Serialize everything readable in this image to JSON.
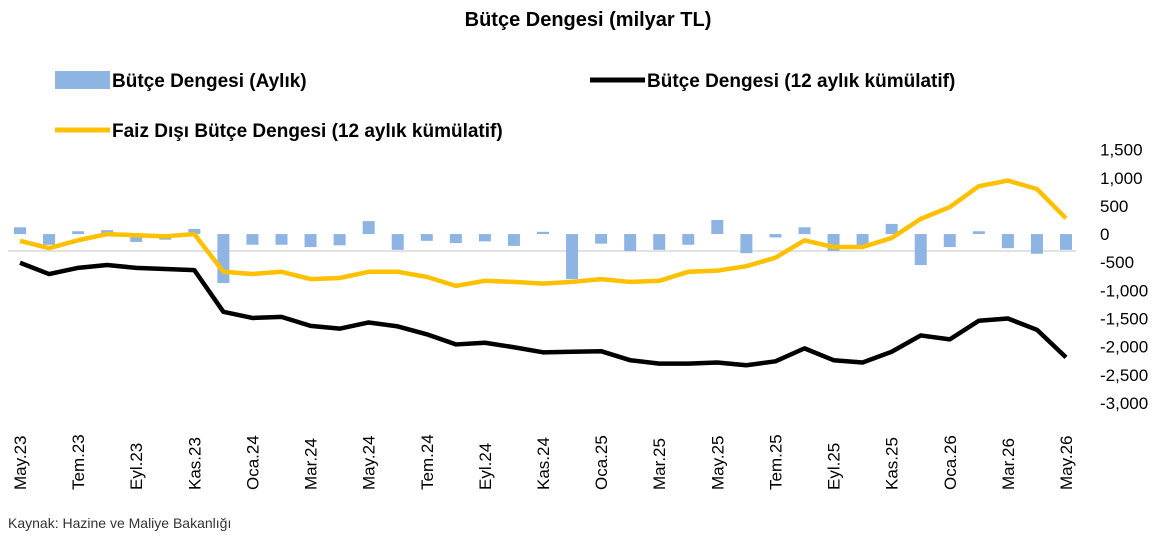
{
  "chart_data": {
    "type": "bar-line",
    "title": "Bütçe Dengesi (milyar TL)",
    "source": "Kaynak: Hazine ve Maliye Bakanlığı",
    "categories": [
      "May.23",
      null,
      "Tem.23",
      null,
      "Eyl.23",
      null,
      "Kas.23",
      null,
      "Oca.24",
      null,
      "Mar.24",
      null,
      "May.24",
      null,
      "Tem.24",
      null,
      "Eyl.24",
      null,
      "Kas.24",
      null,
      "Oca.25",
      null,
      "Mar.25",
      null,
      "May.25",
      null,
      "Tem.25",
      null,
      "Eyl.25",
      null,
      "Kas.25",
      null,
      "Oca.26",
      null,
      "Mar.26",
      null,
      "May.26"
    ],
    "series": [
      {
        "name": "Bütçe Dengesi (Aylık)",
        "type": "bar",
        "color": "#8eb4e3",
        "values": [
          120,
          -190,
          50,
          70,
          -140,
          -100,
          90,
          -870,
          -190,
          -190,
          -230,
          -200,
          230,
          -280,
          -120,
          -160,
          -130,
          -210,
          40,
          -800,
          -170,
          -300,
          -280,
          -190,
          250,
          -340,
          -60,
          120,
          -300,
          -210,
          180,
          -550,
          -230,
          50,
          -250,
          -350,
          -280
        ]
      },
      {
        "name": "Bütçe Dengesi (12 aylık kümülatif)",
        "type": "line",
        "color": "#000000",
        "values": [
          -510,
          -710,
          -600,
          -550,
          -600,
          -620,
          -640,
          -1380,
          -1490,
          -1470,
          -1630,
          -1680,
          -1570,
          -1640,
          -1780,
          -1960,
          -1930,
          -2010,
          -2100,
          -2090,
          -2080,
          -2240,
          -2300,
          -2300,
          -2280,
          -2330,
          -2260,
          -2030,
          -2240,
          -2280,
          -2090,
          -1800,
          -1870,
          -1540,
          -1500,
          -1700,
          -2190
        ]
      },
      {
        "name": "Faiz Dışı Bütçe Dengesi (12 aylık kümülatif)",
        "type": "line",
        "color": "#ffc000",
        "values": [
          -120,
          -250,
          -110,
          0,
          -20,
          -40,
          0,
          -670,
          -710,
          -670,
          -800,
          -780,
          -670,
          -670,
          -760,
          -920,
          -830,
          -850,
          -880,
          -850,
          -800,
          -850,
          -830,
          -670,
          -650,
          -570,
          -420,
          -110,
          -230,
          -230,
          -70,
          270,
          480,
          850,
          950,
          800,
          280
        ]
      }
    ],
    "ylim": [
      -3000,
      1500
    ],
    "yticks": [
      {
        "value": 1500,
        "label": "1,500"
      },
      {
        "value": 1000,
        "label": "1,000"
      },
      500,
      0,
      -500,
      {
        "value": -1000,
        "label": "-1,000"
      },
      {
        "value": -1500,
        "label": "-1,500"
      },
      {
        "value": -2000,
        "label": "-2,000"
      },
      {
        "value": -2500,
        "label": "-2,500"
      },
      {
        "value": -3000,
        "label": "-3,000"
      }
    ],
    "legend": "top",
    "grid": false
  }
}
